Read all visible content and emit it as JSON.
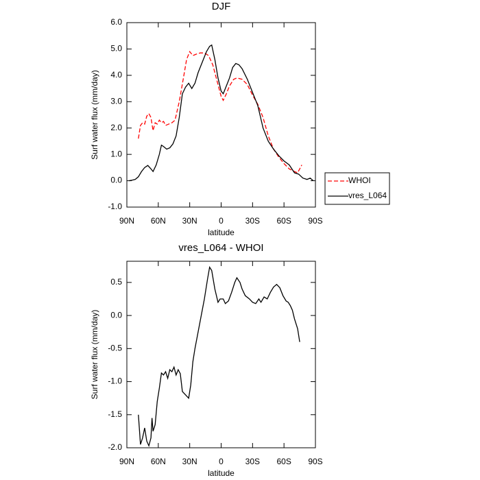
{
  "chart_data": [
    {
      "type": "line",
      "title": "DJF",
      "xlabel": "latitude",
      "ylabel": "Surf water flux (mm/day)",
      "xlim": [
        90,
        -90
      ],
      "ylim": [
        -1,
        6
      ],
      "xticks": [
        {
          "value": 90,
          "label": "90N"
        },
        {
          "value": 60,
          "label": "60N"
        },
        {
          "value": 30,
          "label": "30N"
        },
        0,
        {
          "value": -30,
          "label": "30S"
        },
        {
          "value": -60,
          "label": "60S"
        },
        {
          "value": -90,
          "label": "90S"
        }
      ],
      "yticks": [
        {
          "value": -1,
          "label": "-1.0"
        },
        {
          "value": 0,
          "label": "0.0"
        },
        {
          "value": 1,
          "label": "1.0"
        },
        {
          "value": 2,
          "label": "2.0"
        },
        {
          "value": 3,
          "label": "3.0"
        },
        {
          "value": 4,
          "label": "4.0"
        },
        {
          "value": 5,
          "label": "5.0"
        },
        {
          "value": 6,
          "label": "6.0"
        }
      ],
      "legend": "right",
      "series": [
        {
          "name": "WHOI",
          "color": "#ff0000",
          "linestyle": "dashed",
          "x": [
            79,
            77,
            75,
            73,
            71,
            69,
            67,
            65,
            63,
            61,
            59,
            57,
            55,
            53,
            50,
            47,
            44,
            40,
            36,
            33,
            30,
            27,
            24,
            20,
            16,
            12,
            8,
            4,
            0,
            -2,
            -5,
            -8,
            -12,
            -15,
            -20,
            -25,
            -30,
            -35,
            -40,
            -45,
            -50,
            -55,
            -60,
            -65,
            -70,
            -73,
            -75,
            -77
          ],
          "values": [
            1.6,
            2.1,
            2.2,
            2.15,
            2.45,
            2.55,
            2.4,
            1.9,
            2.2,
            2.15,
            2.3,
            2.2,
            2.25,
            2.1,
            2.15,
            2.2,
            2.3,
            3.0,
            3.9,
            4.6,
            4.9,
            4.75,
            4.8,
            4.85,
            4.85,
            4.75,
            4.4,
            3.8,
            3.2,
            3.05,
            3.3,
            3.6,
            3.85,
            3.9,
            3.85,
            3.65,
            3.25,
            2.9,
            2.4,
            1.7,
            1.2,
            0.9,
            0.65,
            0.45,
            0.35,
            0.3,
            0.45,
            0.6
          ]
        },
        {
          "name": "vres_L064",
          "color": "#000000",
          "linestyle": "solid",
          "x": [
            88,
            85,
            82,
            79,
            76,
            73,
            70,
            67,
            65,
            62,
            59,
            57,
            55,
            52,
            49,
            46,
            43,
            40,
            37,
            34,
            31,
            28,
            25,
            22,
            18,
            14,
            11,
            9,
            6,
            3,
            0,
            -2,
            -5,
            -8,
            -11,
            -14,
            -17,
            -20,
            -25,
            -30,
            -35,
            -40,
            -45,
            -50,
            -55,
            -60,
            -65,
            -70,
            -74,
            -78,
            -82,
            -85,
            -88
          ],
          "values": [
            0.0,
            0.02,
            0.05,
            0.15,
            0.35,
            0.5,
            0.58,
            0.45,
            0.35,
            0.6,
            1.0,
            1.35,
            1.3,
            1.2,
            1.25,
            1.4,
            1.7,
            2.4,
            3.3,
            3.55,
            3.7,
            3.5,
            3.7,
            4.1,
            4.5,
            4.9,
            5.1,
            5.15,
            4.6,
            3.9,
            3.4,
            3.3,
            3.6,
            3.9,
            4.3,
            4.45,
            4.4,
            4.25,
            3.85,
            3.35,
            2.85,
            2.0,
            1.5,
            1.2,
            0.95,
            0.75,
            0.6,
            0.3,
            0.25,
            0.1,
            0.05,
            0.1,
            0.0
          ]
        }
      ]
    },
    {
      "type": "line",
      "title": "vres_L064 - WHOI",
      "xlabel": "latitude",
      "ylabel": "Surf water flux (mm/day)",
      "xlim": [
        90,
        -90
      ],
      "ylim": [
        -2,
        0.82
      ],
      "xticks": [
        {
          "value": 90,
          "label": "90N"
        },
        {
          "value": 60,
          "label": "60N"
        },
        {
          "value": 30,
          "label": "30N"
        },
        0,
        {
          "value": -30,
          "label": "30S"
        },
        {
          "value": -60,
          "label": "60S"
        },
        {
          "value": -90,
          "label": "90S"
        }
      ],
      "yticks": [
        {
          "value": -2,
          "label": "-2.0"
        },
        -1.5,
        {
          "value": -1,
          "label": "-1.0"
        },
        -0.5,
        {
          "value": 0,
          "label": "0.0"
        },
        0.5
      ],
      "series": [
        {
          "color": "#000000",
          "linestyle": "solid",
          "x": [
            79,
            77,
            75,
            73,
            71,
            69,
            67,
            66,
            65,
            63,
            61,
            59,
            57,
            55,
            53,
            51,
            49,
            47,
            45,
            43,
            41,
            39,
            37,
            34,
            31,
            29,
            27,
            25,
            22,
            19,
            16,
            13,
            11,
            9,
            6,
            3,
            1,
            -2,
            -4,
            -7,
            -10,
            -13,
            -15,
            -18,
            -20,
            -23,
            -27,
            -30,
            -33,
            -36,
            -38,
            -41,
            -44,
            -47,
            -50,
            -53,
            -56,
            -59,
            -62,
            -64,
            -66,
            -68,
            -70,
            -73,
            -75
          ],
          "values": [
            -1.5,
            -1.95,
            -1.85,
            -1.7,
            -1.9,
            -1.97,
            -1.85,
            -1.55,
            -1.75,
            -1.65,
            -1.3,
            -1.1,
            -0.87,
            -0.9,
            -0.85,
            -0.95,
            -0.82,
            -0.85,
            -0.78,
            -0.9,
            -0.82,
            -0.88,
            -1.15,
            -1.2,
            -1.25,
            -1.05,
            -0.7,
            -0.5,
            -0.25,
            0.0,
            0.25,
            0.55,
            0.73,
            0.68,
            0.4,
            0.2,
            0.25,
            0.25,
            0.18,
            0.22,
            0.35,
            0.5,
            0.57,
            0.5,
            0.4,
            0.3,
            0.25,
            0.2,
            0.18,
            0.25,
            0.2,
            0.28,
            0.25,
            0.35,
            0.43,
            0.47,
            0.42,
            0.3,
            0.22,
            0.2,
            0.15,
            0.08,
            -0.05,
            -0.2,
            -0.4
          ]
        }
      ]
    }
  ]
}
